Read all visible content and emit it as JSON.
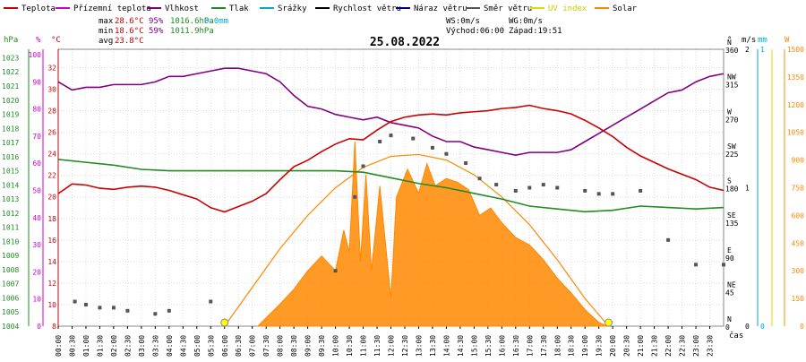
{
  "chart_data": {
    "type": "line",
    "title": "25.08.2022",
    "legend": [
      {
        "name": "Teplota",
        "color": "#cc0000"
      },
      {
        "name": "Přízemní teplota",
        "color": "#cc00cc"
      },
      {
        "name": "Vlhkost",
        "color": "#800080"
      },
      {
        "name": "Tlak",
        "color": "#228b22"
      },
      {
        "name": "Srážky",
        "color": "#00aacc"
      },
      {
        "name": "Rychlost větru",
        "color": "#000000"
      },
      {
        "name": "Náraz větru",
        "color": "#000080"
      },
      {
        "name": "Směr větru",
        "color": "#555555"
      },
      {
        "name": "UV index",
        "color": "#dddd00"
      },
      {
        "name": "Solar",
        "color": "#ff8800"
      }
    ],
    "stats": {
      "max_label": "max",
      "max_temp": "28.6°C",
      "max_hum": "95%",
      "max_press": "1016.6hPa",
      "rain": "0.0mm",
      "min_label": "min",
      "min_temp": "18.6°C",
      "min_hum": "59%",
      "min_press": "1011.9hPa",
      "avg_label": "avg",
      "avg_temp": "23.8°C"
    },
    "info": {
      "ws": "WS:0m/s",
      "wg": "WG:0m/s",
      "sunrise": "Východ:06:00",
      "sunset": "Západ:19:51"
    },
    "axes_units": {
      "hpa": "hPa",
      "pct": "%",
      "temp": "°C",
      "deg": "°",
      "ms": "m/s",
      "mm": "mm",
      "w": "W",
      "x": "čas"
    },
    "hpa_ticks": [
      1004,
      1005,
      1006,
      1007,
      1008,
      1009,
      1010,
      1011,
      1012,
      1013,
      1014,
      1015,
      1016,
      1017,
      1018,
      1019,
      1020,
      1021,
      1022,
      1023
    ],
    "pct_ticks": [
      0,
      10,
      20,
      30,
      40,
      50,
      60,
      70,
      80,
      90,
      100
    ],
    "temp_ticks": [
      8,
      10,
      12,
      14,
      16,
      18,
      20,
      22,
      24,
      26,
      28,
      30,
      32
    ],
    "dir_ticks": [
      {
        "v": "0",
        "d": "N"
      },
      {
        "v": "45",
        "d": "NE"
      },
      {
        "v": "90",
        "d": "E"
      },
      {
        "v": "135",
        "d": "SE"
      },
      {
        "v": "180",
        "d": "S"
      },
      {
        "v": "225",
        "d": "SW"
      },
      {
        "v": "270",
        "d": "W"
      },
      {
        "v": "315",
        "d": "NW"
      },
      {
        "v": "360",
        "d": "N"
      }
    ],
    "ms_ticks": [
      "0",
      "1",
      "2"
    ],
    "mm_ticks": [
      "0",
      "1"
    ],
    "w_ticks": [
      0,
      150,
      300,
      450,
      600,
      750,
      900,
      1050,
      1200,
      1350,
      1500
    ],
    "x_ticks": [
      "00:00",
      "00:30",
      "01:00",
      "01:30",
      "02:00",
      "02:30",
      "03:00",
      "03:30",
      "04:00",
      "04:30",
      "05:00",
      "05:30",
      "06:00",
      "06:30",
      "07:00",
      "07:30",
      "08:00",
      "08:30",
      "09:00",
      "09:30",
      "10:00",
      "10:30",
      "11:00",
      "11:30",
      "12:00",
      "12:30",
      "13:00",
      "13:30",
      "14:00",
      "14:30",
      "15:00",
      "15:30",
      "16:00",
      "16:30",
      "17:00",
      "17:30",
      "18:00",
      "18:30",
      "19:00",
      "19:30",
      "20:00",
      "20:30",
      "21:00",
      "21:30",
      "22:00",
      "22:30",
      "23:00",
      "23:30"
    ],
    "ranges": {
      "temp": [
        8,
        33.7
      ],
      "hpa": [
        1004,
        1023.6
      ],
      "pct": [
        0,
        102
      ],
      "deg": [
        0,
        360
      ],
      "w": [
        0,
        1500
      ],
      "x_hours": [
        0,
        24
      ]
    },
    "series": {
      "temperature": {
        "name": "Teplota",
        "color": "#cc0000",
        "points": [
          [
            0,
            20.3
          ],
          [
            0.5,
            21.2
          ],
          [
            1,
            21.1
          ],
          [
            1.5,
            20.8
          ],
          [
            2,
            20.7
          ],
          [
            2.5,
            20.9
          ],
          [
            3,
            21.0
          ],
          [
            3.5,
            20.9
          ],
          [
            4,
            20.6
          ],
          [
            4.5,
            20.2
          ],
          [
            5,
            19.8
          ],
          [
            5.5,
            19.0
          ],
          [
            6,
            18.6
          ],
          [
            6.5,
            19.1
          ],
          [
            7,
            19.6
          ],
          [
            7.5,
            20.3
          ],
          [
            8,
            21.6
          ],
          [
            8.5,
            22.8
          ],
          [
            9,
            23.4
          ],
          [
            9.5,
            24.2
          ],
          [
            10,
            24.9
          ],
          [
            10.5,
            25.4
          ],
          [
            11,
            25.3
          ],
          [
            11.5,
            26.2
          ],
          [
            12,
            27.0
          ],
          [
            12.5,
            27.4
          ],
          [
            13,
            27.6
          ],
          [
            13.5,
            27.7
          ],
          [
            14,
            27.6
          ],
          [
            14.5,
            27.8
          ],
          [
            15,
            27.9
          ],
          [
            15.5,
            28.0
          ],
          [
            16,
            28.2
          ],
          [
            16.5,
            28.3
          ],
          [
            17,
            28.5
          ],
          [
            17.5,
            28.2
          ],
          [
            18,
            28.0
          ],
          [
            18.5,
            27.7
          ],
          [
            19,
            27.1
          ],
          [
            19.5,
            26.4
          ],
          [
            20,
            25.6
          ],
          [
            20.5,
            24.6
          ],
          [
            21,
            23.8
          ],
          [
            21.5,
            23.2
          ],
          [
            22,
            22.6
          ],
          [
            22.5,
            22.1
          ],
          [
            23,
            21.6
          ],
          [
            23.5,
            20.9
          ],
          [
            24,
            20.6
          ]
        ]
      },
      "humidity": {
        "name": "Vlhkost",
        "color": "#800080",
        "points": [
          [
            0,
            90
          ],
          [
            0.5,
            87
          ],
          [
            1,
            88
          ],
          [
            1.5,
            88
          ],
          [
            2,
            89
          ],
          [
            2.5,
            89
          ],
          [
            3,
            89
          ],
          [
            3.5,
            90
          ],
          [
            4,
            92
          ],
          [
            4.5,
            92
          ],
          [
            5,
            93
          ],
          [
            5.5,
            94
          ],
          [
            6,
            95
          ],
          [
            6.5,
            95
          ],
          [
            7,
            94
          ],
          [
            7.5,
            93
          ],
          [
            8,
            90
          ],
          [
            8.5,
            85
          ],
          [
            9,
            81
          ],
          [
            9.5,
            80
          ],
          [
            10,
            78
          ],
          [
            10.5,
            77
          ],
          [
            11,
            76
          ],
          [
            11.5,
            77
          ],
          [
            12,
            75
          ],
          [
            12.5,
            74
          ],
          [
            13,
            73
          ],
          [
            13.5,
            70
          ],
          [
            14,
            68
          ],
          [
            14.5,
            68
          ],
          [
            15,
            66
          ],
          [
            15.5,
            65
          ],
          [
            16,
            64
          ],
          [
            16.5,
            63
          ],
          [
            17,
            64
          ],
          [
            17.5,
            64
          ],
          [
            18,
            64
          ],
          [
            18.5,
            65
          ],
          [
            19,
            68
          ],
          [
            19.5,
            71
          ],
          [
            20,
            74
          ],
          [
            20.5,
            77
          ],
          [
            21,
            80
          ],
          [
            21.5,
            83
          ],
          [
            22,
            86
          ],
          [
            22.5,
            87
          ],
          [
            23,
            90
          ],
          [
            23.5,
            92
          ],
          [
            24,
            93
          ]
        ]
      },
      "pressure": {
        "name": "Tlak",
        "color": "#228b22",
        "points": [
          [
            0,
            1015.8
          ],
          [
            1,
            1015.6
          ],
          [
            2,
            1015.4
          ],
          [
            3,
            1015.1
          ],
          [
            4,
            1015.0
          ],
          [
            5,
            1015.0
          ],
          [
            6,
            1015.0
          ],
          [
            7,
            1015.0
          ],
          [
            8,
            1015.0
          ],
          [
            9,
            1015.0
          ],
          [
            10,
            1015.0
          ],
          [
            11,
            1014.9
          ],
          [
            12,
            1014.5
          ],
          [
            13,
            1014.1
          ],
          [
            14,
            1013.8
          ],
          [
            15,
            1013.4
          ],
          [
            16,
            1013.0
          ],
          [
            17,
            1012.5
          ],
          [
            18,
            1012.3
          ],
          [
            19,
            1012.1
          ],
          [
            20,
            1012.2
          ],
          [
            21,
            1012.5
          ],
          [
            22,
            1012.4
          ],
          [
            23,
            1012.3
          ],
          [
            24,
            1012.4
          ]
        ]
      },
      "wind_direction": {
        "name": "Směr větru",
        "color": "#555555",
        "points": [
          [
            0.6,
            8
          ],
          [
            1,
            7
          ],
          [
            1.5,
            6
          ],
          [
            2,
            6
          ],
          [
            2.5,
            5
          ],
          [
            3.5,
            4
          ],
          [
            4,
            5
          ],
          [
            5.5,
            8
          ],
          [
            10,
            18
          ],
          [
            10.7,
            42
          ],
          [
            11,
            52
          ],
          [
            11.6,
            60
          ],
          [
            12,
            62
          ],
          [
            12.8,
            61
          ],
          [
            13.5,
            58
          ],
          [
            14,
            56
          ],
          [
            14.7,
            53
          ],
          [
            15.2,
            48
          ],
          [
            15.8,
            46
          ],
          [
            16.5,
            44
          ],
          [
            17,
            45
          ],
          [
            17.5,
            46
          ],
          [
            18,
            45
          ],
          [
            19,
            44
          ],
          [
            19.5,
            43
          ],
          [
            20,
            43
          ],
          [
            21,
            44
          ],
          [
            22,
            28
          ],
          [
            23,
            20
          ],
          [
            24,
            20
          ]
        ]
      },
      "solar": {
        "name": "Solar",
        "color": "#ff8800",
        "points": [
          [
            7.2,
            0
          ],
          [
            7.6,
            60
          ],
          [
            8,
            120
          ],
          [
            8.5,
            200
          ],
          [
            9,
            300
          ],
          [
            9.5,
            380
          ],
          [
            10,
            300
          ],
          [
            10.3,
            520
          ],
          [
            10.5,
            400
          ],
          [
            10.7,
            1000
          ],
          [
            10.9,
            350
          ],
          [
            11.1,
            820
          ],
          [
            11.3,
            300
          ],
          [
            11.6,
            760
          ],
          [
            12,
            150
          ],
          [
            12.2,
            700
          ],
          [
            12.6,
            850
          ],
          [
            13,
            720
          ],
          [
            13.3,
            880
          ],
          [
            13.6,
            760
          ],
          [
            14,
            800
          ],
          [
            14.4,
            780
          ],
          [
            14.8,
            740
          ],
          [
            15.2,
            600
          ],
          [
            15.6,
            640
          ],
          [
            16,
            560
          ],
          [
            16.5,
            480
          ],
          [
            17,
            440
          ],
          [
            17.5,
            360
          ],
          [
            18,
            260
          ],
          [
            18.5,
            180
          ],
          [
            19,
            90
          ],
          [
            19.5,
            20
          ],
          [
            19.8,
            0
          ]
        ]
      },
      "solar_theoretical": {
        "name": "Solar",
        "color": "#ff8800",
        "points": [
          [
            6.0,
            0
          ],
          [
            7,
            210
          ],
          [
            8,
            420
          ],
          [
            9,
            600
          ],
          [
            10,
            750
          ],
          [
            11,
            860
          ],
          [
            12,
            920
          ],
          [
            13,
            930
          ],
          [
            14,
            900
          ],
          [
            15,
            820
          ],
          [
            16,
            700
          ],
          [
            17,
            550
          ],
          [
            18,
            360
          ],
          [
            19,
            150
          ],
          [
            19.85,
            0
          ]
        ]
      },
      "uv_points": {
        "name": "UV index",
        "color": "#dddd00",
        "points": [
          [
            6.0,
            0
          ],
          [
            19.85,
            0
          ]
        ]
      }
    }
  }
}
